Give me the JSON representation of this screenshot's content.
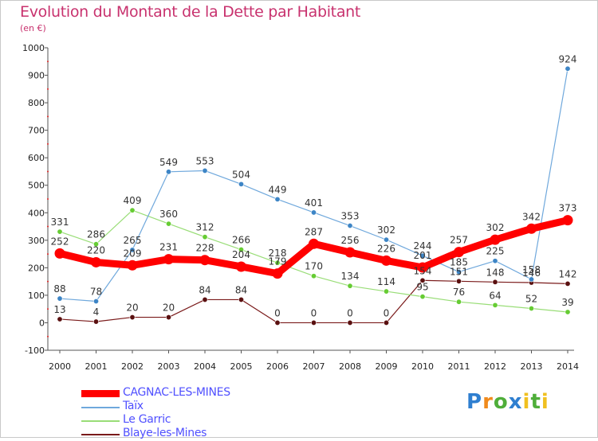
{
  "title": "Evolution du Montant de la Dette par Habitant",
  "unit": "(en €)",
  "logo": {
    "text": "Proxiti",
    "colors": [
      "#2f7fd0",
      "#f08a1c",
      "#4fae3a",
      "#2f7fd0",
      "#f0c020",
      "#4fae3a"
    ]
  },
  "chart_data": {
    "type": "line",
    "x": [
      2000,
      2001,
      2002,
      2003,
      2004,
      2005,
      2006,
      2007,
      2008,
      2009,
      2010,
      2011,
      2012,
      2013,
      2014
    ],
    "ylim": [
      -100,
      1000
    ],
    "yticks": [
      -100,
      0,
      100,
      200,
      300,
      400,
      500,
      600,
      700,
      800,
      900,
      1000
    ],
    "grid": false,
    "legend_position": "bottom-left",
    "series": [
      {
        "name": "Blaye-les-Mines",
        "color": "#7a1a1a",
        "dot": "#5a1010",
        "width": 1.2,
        "values": [
          13,
          4,
          20,
          20,
          84,
          84,
          0,
          0,
          0,
          0,
          154,
          151,
          148,
          146,
          142
        ]
      },
      {
        "name": "Le Garric",
        "color": "#99dd77",
        "dot": "#66cc33",
        "width": 1.2,
        "values": [
          331,
          286,
          409,
          360,
          312,
          266,
          218,
          170,
          134,
          114,
          95,
          76,
          64,
          52,
          39
        ]
      },
      {
        "name": "Taïx",
        "color": "#6fa8dc",
        "dot": "#3d85c6",
        "width": 1.2,
        "values": [
          88,
          78,
          265,
          549,
          553,
          504,
          449,
          401,
          353,
          302,
          244,
          185,
          225,
          158,
          924
        ]
      },
      {
        "name": "CAGNAC-LES-MINES",
        "color": "#ff0000",
        "dot": "#ff0000",
        "width": 9,
        "values": [
          252,
          220,
          209,
          231,
          228,
          204,
          179,
          287,
          256,
          226,
          201,
          257,
          302,
          342,
          373
        ]
      }
    ],
    "labels": {
      "Blaye-les-Mines": [
        "13",
        "4",
        "20",
        "20",
        "84",
        "84",
        "0",
        "0",
        "0",
        "0",
        "154",
        "151",
        "148",
        "146",
        "142"
      ],
      "Le Garric": [
        "331",
        "286",
        "409",
        "360",
        "312",
        "266",
        "218",
        "170",
        "134",
        "114",
        "95",
        "76",
        "64",
        "52",
        "39"
      ],
      "Taïx": [
        "88",
        "78",
        "265",
        "549",
        "553",
        "504",
        "449",
        "401",
        "353",
        "302",
        "244",
        "185",
        "225",
        "158",
        "924"
      ],
      "CAGNAC-LES-MINES": [
        "252",
        "220",
        "209",
        "231",
        "228",
        "204",
        "179",
        "287",
        "256",
        "226",
        "201",
        "257",
        "302",
        "342",
        "373"
      ]
    }
  },
  "legend": [
    {
      "label": "CAGNAC-LES-MINES",
      "color": "#ff0000"
    },
    {
      "label": "Taïx",
      "color": "#6fa8dc"
    },
    {
      "label": "Le Garric",
      "color": "#99dd77"
    },
    {
      "label": "Blaye-les-Mines",
      "color": "#7a1a1a"
    }
  ]
}
